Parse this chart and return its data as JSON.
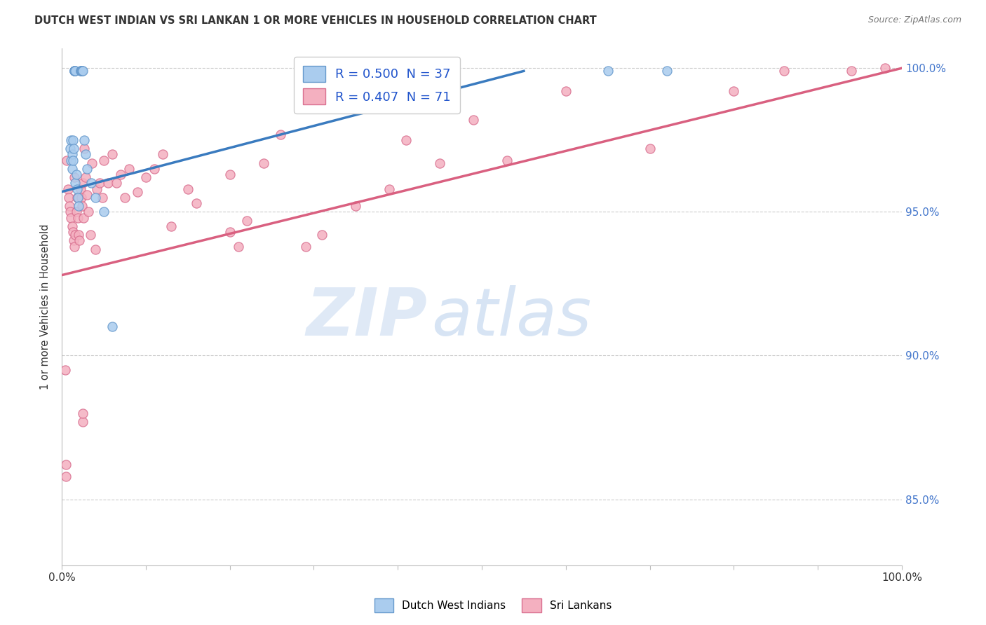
{
  "title": "DUTCH WEST INDIAN VS SRI LANKAN 1 OR MORE VEHICLES IN HOUSEHOLD CORRELATION CHART",
  "source": "Source: ZipAtlas.com",
  "ylabel": "1 or more Vehicles in Household",
  "ytick_labels": [
    "85.0%",
    "90.0%",
    "95.0%",
    "100.0%"
  ],
  "ytick_values": [
    0.85,
    0.9,
    0.95,
    1.0
  ],
  "xlim": [
    0.0,
    1.0
  ],
  "ylim": [
    0.827,
    1.007
  ],
  "legend_entry_blue": "R = 0.500  N = 37",
  "legend_entry_pink": "R = 0.407  N = 71",
  "blue_scatter_x": [
    0.01,
    0.011,
    0.011,
    0.012,
    0.012,
    0.013,
    0.013,
    0.014,
    0.015,
    0.015,
    0.015,
    0.015,
    0.016,
    0.016,
    0.016,
    0.017,
    0.018,
    0.019,
    0.02,
    0.022,
    0.022,
    0.023,
    0.023,
    0.024,
    0.024,
    0.025,
    0.027,
    0.028,
    0.03,
    0.035,
    0.04,
    0.05,
    0.06,
    0.39,
    0.42,
    0.65,
    0.72
  ],
  "blue_scatter_y": [
    0.972,
    0.968,
    0.975,
    0.97,
    0.965,
    0.975,
    0.968,
    0.972,
    0.999,
    0.999,
    0.999,
    0.999,
    0.999,
    0.999,
    0.96,
    0.963,
    0.958,
    0.955,
    0.952,
    0.999,
    0.999,
    0.999,
    0.999,
    0.999,
    0.999,
    0.999,
    0.975,
    0.97,
    0.965,
    0.96,
    0.955,
    0.95,
    0.91,
    0.999,
    0.999,
    0.999,
    0.999
  ],
  "pink_scatter_x": [
    0.004,
    0.006,
    0.007,
    0.008,
    0.009,
    0.01,
    0.011,
    0.012,
    0.013,
    0.014,
    0.015,
    0.015,
    0.016,
    0.017,
    0.018,
    0.019,
    0.02,
    0.021,
    0.022,
    0.023,
    0.024,
    0.025,
    0.026,
    0.027,
    0.028,
    0.03,
    0.032,
    0.034,
    0.036,
    0.04,
    0.042,
    0.045,
    0.048,
    0.05,
    0.055,
    0.06,
    0.065,
    0.07,
    0.075,
    0.08,
    0.09,
    0.1,
    0.11,
    0.12,
    0.13,
    0.15,
    0.16,
    0.2,
    0.22,
    0.24,
    0.26,
    0.29,
    0.31,
    0.35,
    0.39,
    0.41,
    0.45,
    0.49,
    0.53,
    0.6,
    0.7,
    0.8,
    0.86,
    0.94,
    0.98,
    0.025,
    0.025,
    0.2,
    0.21,
    0.005,
    0.005
  ],
  "pink_scatter_y": [
    0.895,
    0.968,
    0.958,
    0.955,
    0.952,
    0.95,
    0.948,
    0.945,
    0.943,
    0.94,
    0.938,
    0.962,
    0.942,
    0.95,
    0.955,
    0.948,
    0.942,
    0.94,
    0.958,
    0.955,
    0.952,
    0.96,
    0.948,
    0.972,
    0.962,
    0.956,
    0.95,
    0.942,
    0.967,
    0.937,
    0.958,
    0.96,
    0.955,
    0.968,
    0.96,
    0.97,
    0.96,
    0.963,
    0.955,
    0.965,
    0.957,
    0.962,
    0.965,
    0.97,
    0.945,
    0.958,
    0.953,
    0.963,
    0.947,
    0.967,
    0.977,
    0.938,
    0.942,
    0.952,
    0.958,
    0.975,
    0.967,
    0.982,
    0.968,
    0.992,
    0.972,
    0.992,
    0.999,
    0.999,
    1.0,
    0.877,
    0.88,
    0.943,
    0.938,
    0.858,
    0.862
  ],
  "blue_line_x": [
    0.0,
    0.55
  ],
  "blue_line_y": [
    0.957,
    0.999
  ],
  "pink_line_x": [
    0.0,
    1.0
  ],
  "pink_line_y": [
    0.928,
    1.0
  ],
  "blue_line_color": "#3a7bbf",
  "pink_line_color": "#d96080",
  "watermark_zip": "ZIP",
  "watermark_atlas": "atlas",
  "grid_color": "#cccccc",
  "bg_color": "#ffffff",
  "scatter_size": 90,
  "blue_fill": "#aaccee",
  "pink_fill": "#f4b0c0",
  "blue_edge": "#6699cc",
  "pink_edge": "#d97090"
}
